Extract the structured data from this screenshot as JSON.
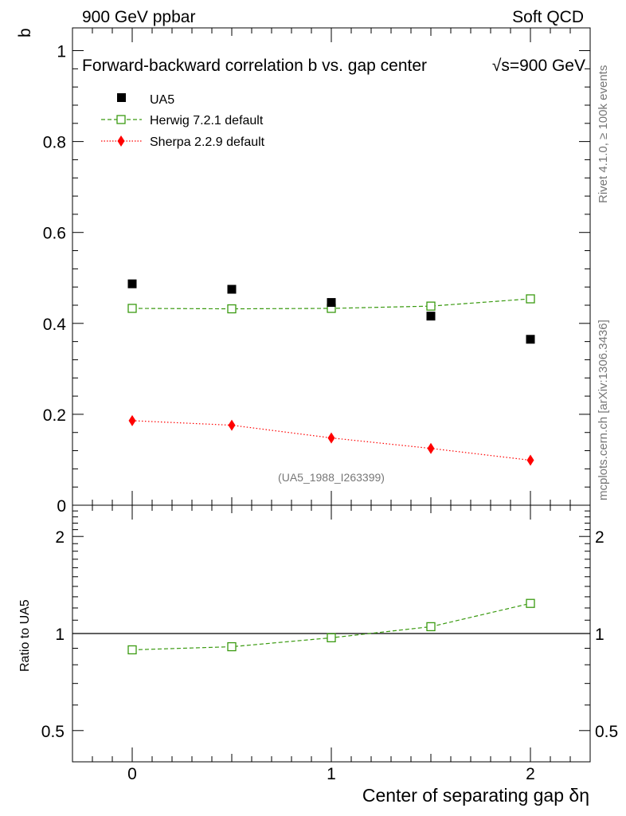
{
  "header": {
    "left": "900 GeV ppbar",
    "right": "Soft QCD"
  },
  "side_labels": {
    "rivet": "Rivet 4.1.0, ≥ 100k events",
    "mcplots": "mcplots.cern.ch [arXiv:1306.3436]"
  },
  "chart_data": [
    {
      "type": "scatter",
      "panel": "main",
      "title_text": "Forward-backward correlation b  vs. gap center",
      "title_energy": "√s=900 GeV",
      "ylabel": "b",
      "xlabel": "Center of separating gap δη",
      "ylim": [
        0,
        1.05
      ],
      "xlim": [
        -0.3,
        2.3
      ],
      "y_ticks": [
        {
          "value": 0,
          "label": "0"
        },
        {
          "value": 0.2,
          "label": "0.2"
        },
        {
          "value": 0.4,
          "label": "0.4"
        },
        {
          "value": 0.6,
          "label": "0.6"
        },
        {
          "value": 0.8,
          "label": "0.8"
        },
        {
          "value": 1.0,
          "label": "1"
        }
      ],
      "x_ticks": [
        {
          "value": 0,
          "label": "0"
        },
        {
          "value": 1,
          "label": "1"
        },
        {
          "value": 2,
          "label": "2"
        }
      ],
      "x": [
        0,
        0.5,
        1.0,
        1.5,
        2.0
      ],
      "series": [
        {
          "name": "UA5",
          "values": [
            0.487,
            0.475,
            0.446,
            0.416,
            0.365
          ],
          "color": "#000000",
          "marker": "square-filled",
          "line": "none"
        },
        {
          "name": "Herwig 7.2.1 default",
          "values": [
            0.433,
            0.432,
            0.433,
            0.438,
            0.454
          ],
          "color": "#3a9a10",
          "marker": "square-open",
          "line": "dashed"
        },
        {
          "name": "Sherpa 2.2.9 default",
          "values": [
            0.186,
            0.176,
            0.148,
            0.125,
            0.099
          ],
          "color": "#ff0000",
          "marker": "diamond",
          "line": "dotted"
        }
      ],
      "annotation": "(UA5_1988_I263399)"
    },
    {
      "type": "line",
      "panel": "ratio",
      "ylabel": "Ratio to UA5",
      "yscale": "log",
      "ylim": [
        0.4,
        2.5
      ],
      "y_ticks": [
        {
          "value": 0.5,
          "label": "0.5"
        },
        {
          "value": 1,
          "label": "1"
        },
        {
          "value": 2,
          "label": "2"
        }
      ],
      "reference": 1.0,
      "x": [
        0,
        0.5,
        1.0,
        1.5,
        2.0
      ],
      "series": [
        {
          "name": "Herwig 7.2.1 default",
          "values": [
            0.89,
            0.91,
            0.97,
            1.05,
            1.24
          ],
          "color": "#3a9a10",
          "marker": "square-open",
          "line": "dashed"
        }
      ]
    }
  ]
}
